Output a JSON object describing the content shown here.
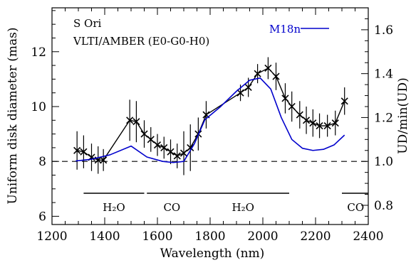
{
  "chart_data": {
    "type": "line",
    "xlabel": "Wavelength (nm)",
    "ylabel": "Uniform disk diameter (mas)",
    "y2label": "UD/min(UD)",
    "xlim": [
      1200,
      2400
    ],
    "ylim": [
      5.7,
      13.6
    ],
    "y2lim": [
      0.7125,
      1.7
    ],
    "xticks": [
      1200,
      1400,
      1600,
      1800,
      2000,
      2200,
      2400
    ],
    "yticks": [
      6,
      8,
      10,
      12
    ],
    "y2ticks": [
      0.8,
      1.0,
      1.2,
      1.4,
      1.6
    ],
    "annotations": [
      "S Ori",
      "VLTI/AMBER (E0-G0-H0)"
    ],
    "reference_line": {
      "y2": 1.0,
      "style": "dashed"
    },
    "series": [
      {
        "style": "black line with x markers and vertical error bars",
        "color": "#000000",
        "x": [
          1295,
          1320,
          1350,
          1375,
          1395,
          1495,
          1520,
          1550,
          1575,
          1600,
          1625,
          1650,
          1675,
          1700,
          1725,
          1755,
          1785,
          1915,
          1945,
          1980,
          2020,
          2050,
          2085,
          2110,
          2140,
          2165,
          2190,
          2215,
          2245,
          2275,
          2310
        ],
        "y": [
          8.4,
          8.35,
          8.15,
          8.05,
          8.05,
          9.5,
          9.45,
          9.0,
          8.8,
          8.6,
          8.5,
          8.35,
          8.2,
          8.3,
          8.5,
          9.0,
          9.7,
          10.5,
          10.7,
          11.2,
          11.4,
          11.1,
          10.3,
          10.0,
          9.7,
          9.5,
          9.4,
          9.3,
          9.3,
          9.4,
          10.2
        ],
        "yerr": [
          0.7,
          0.6,
          0.5,
          0.5,
          0.4,
          0.75,
          0.75,
          0.5,
          0.45,
          0.4,
          0.4,
          0.45,
          0.45,
          0.8,
          0.85,
          0.6,
          0.5,
          0.3,
          0.35,
          0.35,
          0.4,
          0.5,
          0.55,
          0.55,
          0.5,
          0.5,
          0.5,
          0.45,
          0.4,
          0.45,
          0.5
        ]
      },
      {
        "name": "M18n",
        "color": "#0000cc",
        "axis": "right",
        "x": [
          1290,
          1350,
          1420,
          1500,
          1560,
          1620,
          1660,
          1700,
          1740,
          1780,
          1840,
          1900,
          1950,
          1990,
          2030,
          2070,
          2110,
          2150,
          2190,
          2230,
          2270,
          2310
        ],
        "y": [
          1.002,
          1.01,
          1.03,
          1.07,
          1.02,
          1.0,
          0.995,
          1.0,
          1.08,
          1.19,
          1.25,
          1.32,
          1.37,
          1.38,
          1.33,
          1.2,
          1.1,
          1.06,
          1.05,
          1.055,
          1.075,
          1.12
        ]
      }
    ],
    "bands": [
      {
        "label": "H₂O",
        "x": [
          1320,
          1550
        ]
      },
      {
        "label": "CO",
        "x": [
          1560,
          1750
        ]
      },
      {
        "label": "H₂O",
        "x": [
          1750,
          2100
        ]
      },
      {
        "label": "CO",
        "x": [
          2300,
          2400
        ]
      }
    ]
  }
}
